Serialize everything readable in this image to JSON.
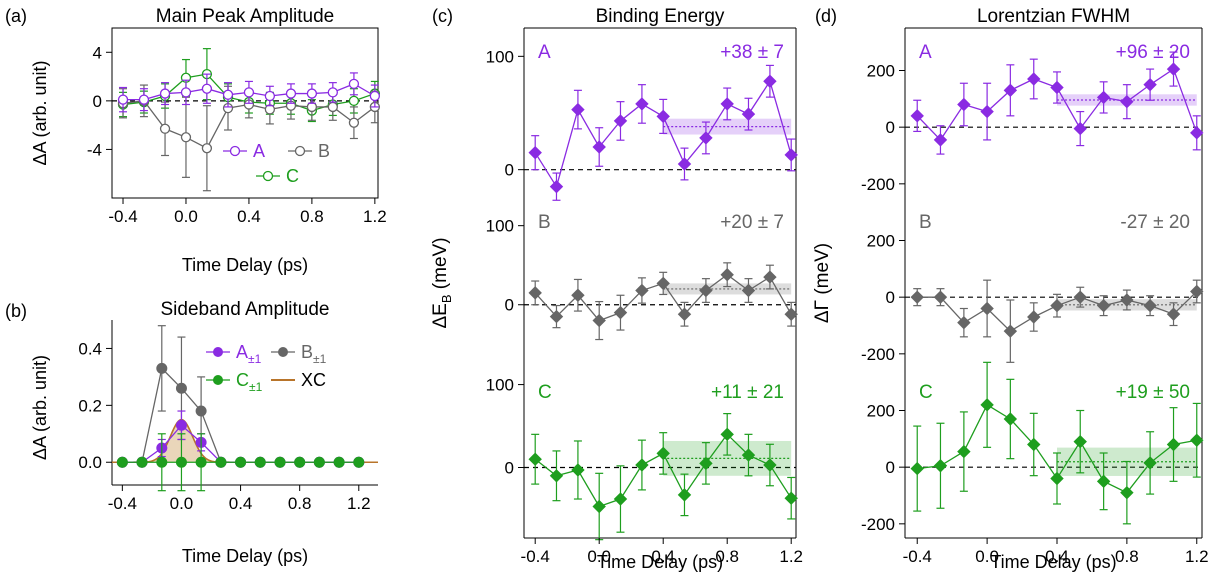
{
  "colors": {
    "A": "#8a2be2",
    "B": "#666666",
    "C": "#1e9e1e",
    "XC": "#b8742a",
    "XC_fill": "#e6cfae",
    "axis": "#000000",
    "zero": "#000000"
  },
  "chart_data": [
    {
      "panel_label": "(a)",
      "type": "line",
      "title": "Main Peak Amplitude",
      "xlabel": "Time Delay (ps)",
      "ylabel": "ΔA (arb. unit)",
      "xlim": [
        -0.47,
        1.22
      ],
      "ylim": [
        -8,
        6
      ],
      "xticks": [
        -0.4,
        0.0,
        0.4,
        0.8,
        1.2
      ],
      "xtick_labels": [
        "-0.4",
        "0.0",
        "0.4",
        "0.8",
        "1.2"
      ],
      "yticks": [
        -4,
        0,
        4
      ],
      "ytick_labels": [
        "-4",
        "0",
        "4"
      ],
      "x": [
        -0.4,
        -0.267,
        -0.133,
        0.0,
        0.133,
        0.267,
        0.4,
        0.533,
        0.667,
        0.8,
        0.933,
        1.067,
        1.2
      ],
      "legend_position": "bottom-right",
      "series": [
        {
          "name": "A",
          "marker": "open-circle",
          "values": [
            0.1,
            0.1,
            0.6,
            0.7,
            1.0,
            0.5,
            0.7,
            0.4,
            0.6,
            0.6,
            0.7,
            1.4,
            0.4
          ],
          "errors": [
            1.0,
            0.9,
            0.9,
            1.0,
            1.2,
            1.0,
            0.9,
            0.8,
            0.8,
            0.8,
            0.8,
            0.9,
            0.9
          ]
        },
        {
          "name": "B",
          "marker": "open-circle",
          "values": [
            -0.2,
            0.0,
            -2.3,
            -3.0,
            -3.9,
            -0.6,
            -0.3,
            -0.7,
            -0.4,
            -0.5,
            -0.5,
            -1.8,
            -0.5
          ],
          "errors": [
            1.2,
            1.3,
            2.2,
            3.3,
            3.5,
            1.8,
            1.1,
            1.2,
            1.1,
            1.1,
            1.1,
            1.3,
            1.3
          ]
        },
        {
          "name": "C",
          "marker": "open-circle",
          "values": [
            -0.3,
            -0.1,
            0.4,
            1.9,
            2.2,
            0.3,
            -0.1,
            -0.2,
            -0.2,
            -0.8,
            -0.3,
            0.0,
            0.6
          ],
          "errors": [
            1.0,
            0.9,
            1.0,
            1.5,
            2.1,
            1.1,
            0.9,
            0.9,
            0.9,
            0.9,
            0.9,
            1.0,
            1.0
          ]
        }
      ]
    },
    {
      "panel_label": "(b)",
      "type": "line",
      "title": "Sideband Amplitude",
      "xlabel": "Time Delay (ps)",
      "ylabel": "ΔA (arb. unit)",
      "xlim": [
        -0.47,
        1.33
      ],
      "ylim": [
        -0.08,
        0.5
      ],
      "xticks": [
        -0.4,
        0.0,
        0.4,
        0.8,
        1.2
      ],
      "xtick_labels": [
        "-0.4",
        "0.0",
        "0.4",
        "0.8",
        "1.2"
      ],
      "yticks": [
        0.0,
        0.2,
        0.4
      ],
      "ytick_labels": [
        "0.0",
        "0.2",
        "0.4"
      ],
      "x": [
        -0.4,
        -0.267,
        -0.133,
        0.0,
        0.133,
        0.267,
        0.4,
        0.533,
        0.667,
        0.8,
        0.933,
        1.067,
        1.2
      ],
      "legend_position": "top-right",
      "series": [
        {
          "name": "A",
          "subscript": "±1",
          "marker": "filled-circle",
          "values": [
            0,
            0,
            0.05,
            0.13,
            0.07,
            0,
            0,
            0,
            0,
            0,
            0,
            0,
            0
          ],
          "errors": [
            0,
            0,
            0.03,
            0.05,
            0.03,
            0,
            0,
            0,
            0,
            0,
            0,
            0,
            0
          ]
        },
        {
          "name": "B",
          "subscript": "±1",
          "marker": "filled-circle",
          "values": [
            0,
            0,
            0.33,
            0.26,
            0.18,
            0,
            0,
            0,
            0,
            0,
            0,
            0,
            0
          ],
          "errors": [
            0,
            0,
            0.15,
            0.18,
            0.12,
            0,
            0,
            0,
            0,
            0,
            0,
            0,
            0
          ]
        },
        {
          "name": "C",
          "subscript": "±1",
          "marker": "filled-circle",
          "values": [
            0,
            0,
            0,
            0,
            0,
            0,
            0,
            0,
            0,
            0,
            0,
            0,
            0
          ],
          "errors": [
            0,
            0,
            0.1,
            0.1,
            0.1,
            0,
            0,
            0,
            0,
            0,
            0,
            0,
            0
          ]
        },
        {
          "name": "XC",
          "marker": "gaussian-area",
          "amplitude": 0.15,
          "sigma": 0.075
        }
      ]
    },
    {
      "panel_label": "(c)",
      "type": "line",
      "title": "Binding Energy",
      "xlabel": "Time Delay (ps)",
      "ylabel": "ΔE",
      "ylabel_sub": "B",
      "ylabel_unit": " (meV)",
      "xlim": [
        -0.47,
        1.23
      ],
      "xticks": [
        -0.4,
        0.0,
        0.4,
        0.8,
        1.2
      ],
      "xtick_labels": [
        "-0.4",
        "0.0",
        "0.4",
        "0.8",
        "1.2"
      ],
      "x": [
        -0.4,
        -0.267,
        -0.133,
        0.0,
        0.133,
        0.267,
        0.4,
        0.533,
        0.667,
        0.8,
        0.933,
        1.067,
        1.2
      ],
      "subpanels": [
        {
          "series": "A",
          "annotation": "+38 ± 7",
          "ylim": [
            -25,
            125
          ],
          "yticks": [
            0,
            100
          ],
          "ytick_labels": [
            "0",
            "100"
          ],
          "marker": "filled-diamond",
          "values": [
            15,
            -15,
            53,
            20,
            43,
            58,
            47,
            5,
            28,
            58,
            49,
            78,
            13
          ],
          "errors": [
            15,
            12,
            17,
            17,
            17,
            17,
            15,
            14,
            14,
            14,
            14,
            14,
            14
          ],
          "avg": {
            "x0": 0.4,
            "x1": 1.2,
            "value": 38,
            "err": 7
          }
        },
        {
          "series": "B",
          "annotation": "+20 ± 7",
          "ylim": [
            -80,
            135
          ],
          "yticks": [
            0,
            100
          ],
          "ytick_labels": [
            "0",
            "100"
          ],
          "marker": "filled-diamond",
          "values": [
            15,
            -15,
            12,
            -20,
            -10,
            18,
            27,
            -12,
            18,
            38,
            18,
            35,
            -12
          ],
          "errors": [
            15,
            14,
            20,
            24,
            22,
            16,
            14,
            15,
            15,
            15,
            15,
            15,
            15
          ],
          "avg": {
            "x0": 0.4,
            "x1": 1.2,
            "value": 20,
            "err": 7
          }
        },
        {
          "series": "C",
          "annotation": "+11 ± 21",
          "ylim": [
            -85,
            120
          ],
          "yticks": [
            0,
            100
          ],
          "ytick_labels": [
            "0",
            "100"
          ],
          "marker": "filled-diamond",
          "values": [
            10,
            -10,
            -3,
            -47,
            -38,
            3,
            17,
            -33,
            5,
            40,
            15,
            3,
            -37
          ],
          "errors": [
            30,
            30,
            35,
            40,
            40,
            30,
            25,
            25,
            25,
            25,
            25,
            25,
            25
          ],
          "avg": {
            "x0": 0.4,
            "x1": 1.2,
            "value": 11,
            "err": 21
          }
        }
      ]
    },
    {
      "panel_label": "(d)",
      "type": "line",
      "title": "Lorentzian FWHM",
      "xlabel": "Time Delay (ps)",
      "ylabel": "ΔΓ (meV)",
      "xlim": [
        -0.47,
        1.23
      ],
      "xticks": [
        -0.4,
        0.0,
        0.4,
        0.8,
        1.2
      ],
      "xtick_labels": [
        "-0.4",
        "0.0",
        "0.4",
        "0.8",
        "1.2"
      ],
      "x": [
        -0.4,
        -0.267,
        -0.133,
        0.0,
        0.133,
        0.267,
        0.4,
        0.533,
        0.667,
        0.8,
        0.933,
        1.067,
        1.2
      ],
      "subpanels": [
        {
          "series": "A",
          "annotation": "+96 ± 20",
          "ylim": [
            -250,
            350
          ],
          "yticks": [
            -200,
            0,
            200
          ],
          "ytick_labels": [
            "-200",
            "0",
            "200"
          ],
          "marker": "filled-diamond",
          "values": [
            40,
            -45,
            80,
            55,
            130,
            170,
            140,
            -5,
            105,
            90,
            150,
            205,
            -20
          ],
          "errors": [
            55,
            50,
            75,
            100,
            90,
            70,
            55,
            60,
            55,
            60,
            55,
            60,
            60
          ],
          "avg": {
            "x0": 0.4,
            "x1": 1.2,
            "value": 96,
            "err": 20
          }
        },
        {
          "series": "B",
          "annotation": "-27 ± 20",
          "ylim": [
            -250,
            350
          ],
          "yticks": [
            -200,
            0,
            200
          ],
          "ytick_labels": [
            "-200",
            "0",
            "200"
          ],
          "marker": "filled-diamond",
          "values": [
            0,
            0,
            -90,
            -40,
            -120,
            -70,
            -30,
            0,
            -30,
            -10,
            -30,
            -60,
            20
          ],
          "errors": [
            30,
            30,
            50,
            100,
            110,
            50,
            40,
            35,
            35,
            35,
            35,
            40,
            40
          ],
          "avg": {
            "x0": 0.4,
            "x1": 1.2,
            "value": -27,
            "err": 20
          }
        },
        {
          "series": "C",
          "annotation": "+19 ± 50",
          "ylim": [
            -250,
            350
          ],
          "yticks": [
            -200,
            0,
            200
          ],
          "ytick_labels": [
            "-200",
            "0",
            "200"
          ],
          "marker": "filled-diamond",
          "values": [
            -5,
            5,
            55,
            220,
            170,
            80,
            -40,
            90,
            -50,
            -90,
            15,
            80,
            95
          ],
          "errors": [
            150,
            150,
            140,
            150,
            140,
            110,
            90,
            110,
            100,
            110,
            110,
            130,
            130
          ],
          "avg": {
            "x0": 0.4,
            "x1": 1.2,
            "value": 19,
            "err": 50
          }
        }
      ]
    }
  ]
}
